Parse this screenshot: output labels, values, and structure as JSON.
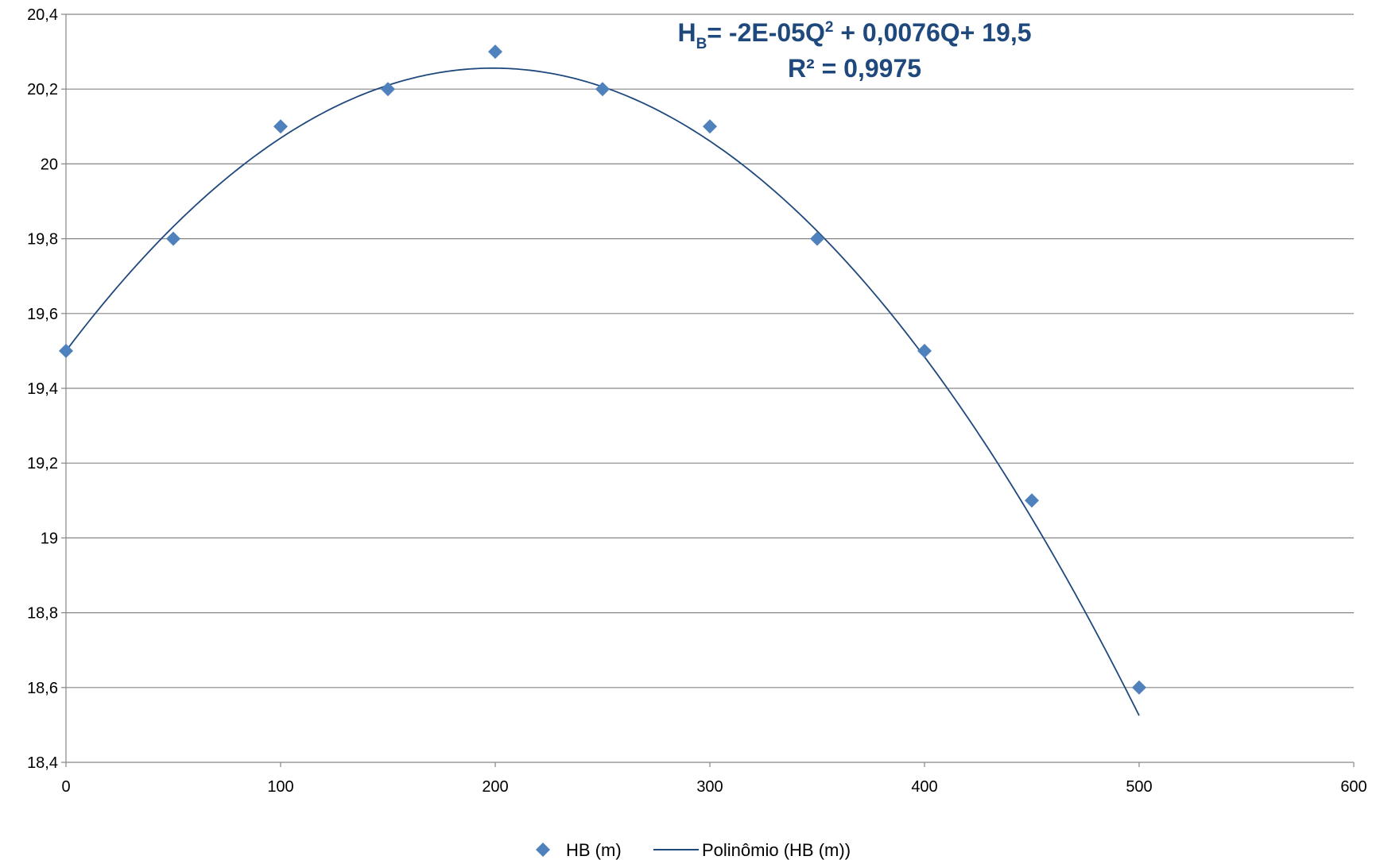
{
  "chart_data": {
    "type": "scatter",
    "title": "",
    "xlabel": "",
    "ylabel": "",
    "xlim": [
      0,
      600
    ],
    "ylim": [
      18.4,
      20.4
    ],
    "x_ticks": [
      0,
      100,
      200,
      300,
      400,
      500,
      600
    ],
    "x_tick_labels": [
      "0",
      "100",
      "200",
      "300",
      "400",
      "500",
      "600"
    ],
    "y_ticks": [
      18.4,
      18.6,
      18.8,
      19.0,
      19.2,
      19.4,
      19.6,
      19.8,
      20.0,
      20.2,
      20.4
    ],
    "y_tick_labels": [
      "18,4",
      "18,6",
      "18,8",
      "19",
      "19,2",
      "19,4",
      "19,6",
      "19,8",
      "20",
      "20,2",
      "20,4"
    ],
    "grid": "horizontal",
    "legend_position": "bottom",
    "series": [
      {
        "name": "HB (m)",
        "kind": "markers",
        "marker": "diamond",
        "color": "#4F81BD",
        "x": [
          0,
          50,
          100,
          150,
          200,
          250,
          300,
          350,
          400,
          450,
          500
        ],
        "y": [
          19.5,
          19.8,
          20.1,
          20.2,
          20.3,
          20.2,
          20.1,
          19.8,
          19.5,
          19.1,
          18.6
        ]
      },
      {
        "name": "Polinômio (HB (m))",
        "kind": "trendline",
        "trend": "polynomial-2",
        "color": "#1F497D",
        "coefficients": {
          "a": -1.91e-05,
          "b": 0.0076,
          "c": 19.5
        },
        "x_range": [
          0,
          500
        ]
      }
    ],
    "annotation": {
      "equation": {
        "h": "H",
        "h_sub": "B",
        "part1": "= -2E-05Q",
        "exp": "2",
        "part2": " + 0,0076Q+ 19,5"
      },
      "r_squared": "R² = 0,9975"
    }
  },
  "colors": {
    "grid": "#868686",
    "axis": "#868686",
    "marker": "#4F81BD",
    "trendline": "#1F497D",
    "equation": "#1F497D"
  }
}
